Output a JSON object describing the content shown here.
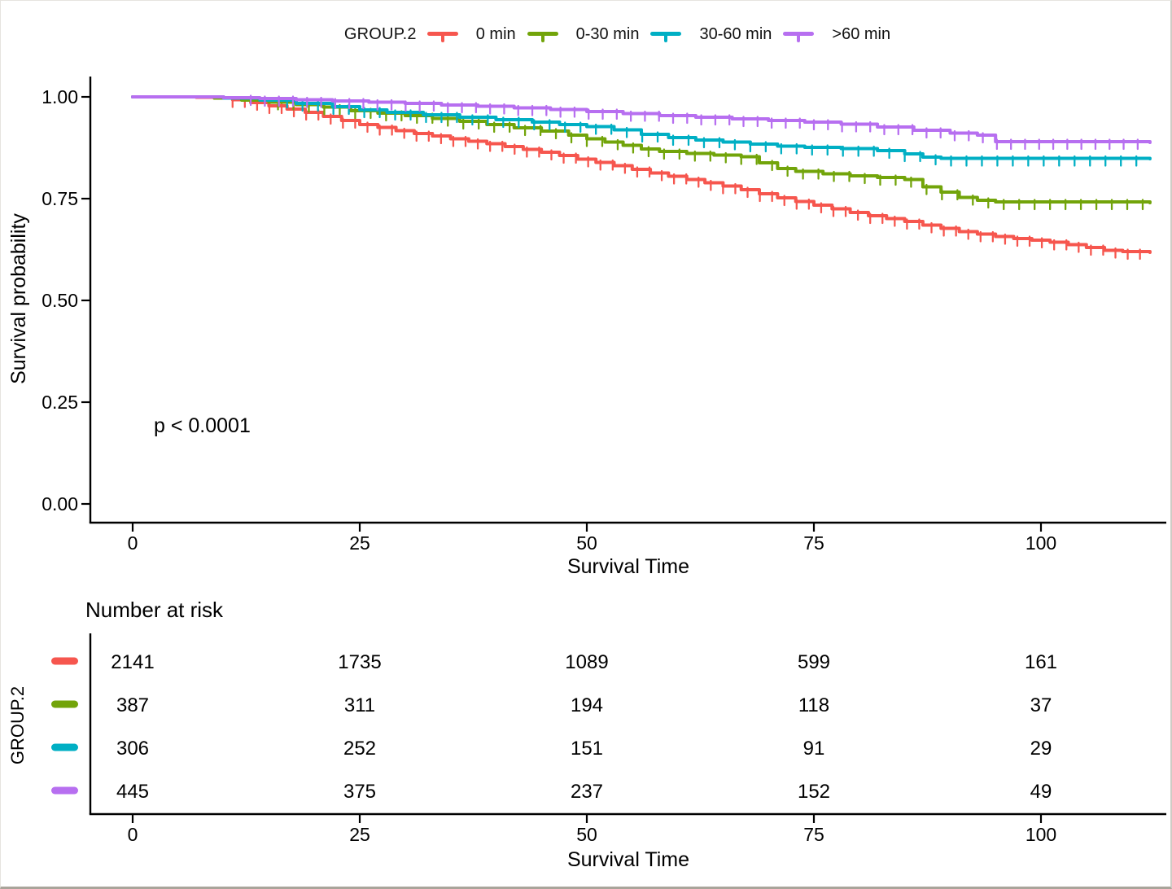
{
  "legend": {
    "title": "GROUP.2",
    "items": [
      {
        "label": "0 min",
        "color": "#F6564E"
      },
      {
        "label": "0-30 min",
        "color": "#72A40A"
      },
      {
        "label": "30-60 min",
        "color": "#00AFC4"
      },
      {
        "label": ">60 min",
        "color": "#B76FF0"
      }
    ]
  },
  "chart_data": {
    "type": "line",
    "subtype": "kaplan-meier-step-with-censor-ticks",
    "title": "",
    "xlabel": "Survival Time",
    "ylabel": "Survival probability",
    "xlim": [
      0,
      114
    ],
    "ylim": [
      0,
      1.0
    ],
    "xticks": [
      "0",
      "25",
      "50",
      "75",
      "100"
    ],
    "xtick_values": [
      0,
      25,
      50,
      75,
      100
    ],
    "yticks": [
      "1.00",
      "0.75",
      "0.50",
      "0.25",
      "0.00"
    ],
    "ytick_values": [
      1.0,
      0.75,
      0.5,
      0.25,
      0.0
    ],
    "grid": false,
    "legend_position": "top",
    "p_annotation": "p < 0.0001",
    "series": [
      {
        "name": "0 min",
        "color": "#F6564E",
        "points": [
          [
            0,
            1.0
          ],
          [
            7,
            0.999
          ],
          [
            9,
            0.997
          ],
          [
            11,
            0.993
          ],
          [
            13,
            0.986
          ],
          [
            15,
            0.978
          ],
          [
            17,
            0.97
          ],
          [
            19,
            0.962
          ],
          [
            21,
            0.952
          ],
          [
            23,
            0.942
          ],
          [
            25,
            0.932
          ],
          [
            27,
            0.925
          ],
          [
            29,
            0.917
          ],
          [
            31,
            0.91
          ],
          [
            33,
            0.904
          ],
          [
            35,
            0.897
          ],
          [
            37,
            0.891
          ],
          [
            39,
            0.885
          ],
          [
            41,
            0.878
          ],
          [
            43,
            0.871
          ],
          [
            45,
            0.864
          ],
          [
            47,
            0.856
          ],
          [
            49,
            0.847
          ],
          [
            51,
            0.839
          ],
          [
            53,
            0.831
          ],
          [
            55,
            0.822
          ],
          [
            57,
            0.813
          ],
          [
            59,
            0.805
          ],
          [
            61,
            0.797
          ],
          [
            63,
            0.789
          ],
          [
            65,
            0.781
          ],
          [
            67,
            0.772
          ],
          [
            69,
            0.762
          ],
          [
            71,
            0.752
          ],
          [
            73,
            0.743
          ],
          [
            75,
            0.734
          ],
          [
            77,
            0.725
          ],
          [
            79,
            0.716
          ],
          [
            81,
            0.708
          ],
          [
            83,
            0.701
          ],
          [
            85,
            0.694
          ],
          [
            87,
            0.685
          ],
          [
            89,
            0.677
          ],
          [
            91,
            0.669
          ],
          [
            93,
            0.663
          ],
          [
            95,
            0.657
          ],
          [
            97,
            0.652
          ],
          [
            99,
            0.648
          ],
          [
            101,
            0.643
          ],
          [
            103,
            0.637
          ],
          [
            105,
            0.63
          ],
          [
            107,
            0.623
          ],
          [
            109,
            0.62
          ],
          [
            112,
            0.618
          ]
        ]
      },
      {
        "name": "0-30 min",
        "color": "#72A40A",
        "points": [
          [
            0,
            1.0
          ],
          [
            9,
            0.997
          ],
          [
            12,
            0.992
          ],
          [
            15,
            0.987
          ],
          [
            18,
            0.981
          ],
          [
            21,
            0.975
          ],
          [
            24,
            0.966
          ],
          [
            27,
            0.96
          ],
          [
            30,
            0.954
          ],
          [
            33,
            0.947
          ],
          [
            36,
            0.94
          ],
          [
            39,
            0.932
          ],
          [
            42,
            0.924
          ],
          [
            45,
            0.916
          ],
          [
            48,
            0.906
          ],
          [
            50,
            0.897
          ],
          [
            52,
            0.889
          ],
          [
            54,
            0.881
          ],
          [
            56,
            0.872
          ],
          [
            58,
            0.866
          ],
          [
            61,
            0.861
          ],
          [
            64,
            0.857
          ],
          [
            67,
            0.853
          ],
          [
            69,
            0.838
          ],
          [
            71,
            0.824
          ],
          [
            73,
            0.817
          ],
          [
            76,
            0.811
          ],
          [
            79,
            0.806
          ],
          [
            82,
            0.802
          ],
          [
            85,
            0.797
          ],
          [
            87,
            0.779
          ],
          [
            89,
            0.766
          ],
          [
            91,
            0.753
          ],
          [
            93,
            0.746
          ],
          [
            95,
            0.742
          ],
          [
            112,
            0.74
          ]
        ]
      },
      {
        "name": "30-60 min",
        "color": "#00AFC4",
        "points": [
          [
            0,
            1.0
          ],
          [
            10,
            0.997
          ],
          [
            14,
            0.992
          ],
          [
            18,
            0.984
          ],
          [
            22,
            0.976
          ],
          [
            25,
            0.968
          ],
          [
            28,
            0.962
          ],
          [
            32,
            0.956
          ],
          [
            36,
            0.95
          ],
          [
            40,
            0.944
          ],
          [
            44,
            0.938
          ],
          [
            47,
            0.932
          ],
          [
            50,
            0.927
          ],
          [
            53,
            0.919
          ],
          [
            56,
            0.908
          ],
          [
            59,
            0.9
          ],
          [
            62,
            0.894
          ],
          [
            65,
            0.889
          ],
          [
            68,
            0.884
          ],
          [
            71,
            0.879
          ],
          [
            74,
            0.876
          ],
          [
            78,
            0.873
          ],
          [
            82,
            0.868
          ],
          [
            85,
            0.86
          ],
          [
            87,
            0.852
          ],
          [
            89,
            0.849
          ],
          [
            112,
            0.848
          ]
        ]
      },
      {
        "name": ">60 min",
        "color": "#B76FF0",
        "points": [
          [
            0,
            1.0
          ],
          [
            10,
            0.998
          ],
          [
            14,
            0.996
          ],
          [
            18,
            0.993
          ],
          [
            22,
            0.99
          ],
          [
            26,
            0.987
          ],
          [
            30,
            0.984
          ],
          [
            34,
            0.98
          ],
          [
            38,
            0.977
          ],
          [
            42,
            0.973
          ],
          [
            46,
            0.969
          ],
          [
            50,
            0.964
          ],
          [
            54,
            0.959
          ],
          [
            58,
            0.954
          ],
          [
            62,
            0.95
          ],
          [
            66,
            0.946
          ],
          [
            70,
            0.942
          ],
          [
            74,
            0.938
          ],
          [
            78,
            0.933
          ],
          [
            82,
            0.926
          ],
          [
            86,
            0.918
          ],
          [
            90,
            0.911
          ],
          [
            93,
            0.906
          ],
          [
            95,
            0.89
          ],
          [
            112,
            0.888
          ]
        ]
      }
    ]
  },
  "risk_table": {
    "title": "Number at risk",
    "group_axis_label": "GROUP.2",
    "xlabel": "Survival Time",
    "xticks": [
      "0",
      "25",
      "50",
      "75",
      "100"
    ],
    "xtick_values": [
      0,
      25,
      50,
      75,
      100
    ],
    "rows": [
      {
        "group": "0 min",
        "color": "#F6564E",
        "values": [
          "2141",
          "1735",
          "1089",
          "599",
          "161"
        ]
      },
      {
        "group": "0-30 min",
        "color": "#72A40A",
        "values": [
          "387",
          "311",
          "194",
          "118",
          "37"
        ]
      },
      {
        "group": "30-60 min",
        "color": "#00AFC4",
        "values": [
          "306",
          "252",
          "151",
          "91",
          "29"
        ]
      },
      {
        "group": ">60 min",
        "color": "#B76FF0",
        "values": [
          "445",
          "375",
          "237",
          "152",
          "49"
        ]
      }
    ]
  }
}
